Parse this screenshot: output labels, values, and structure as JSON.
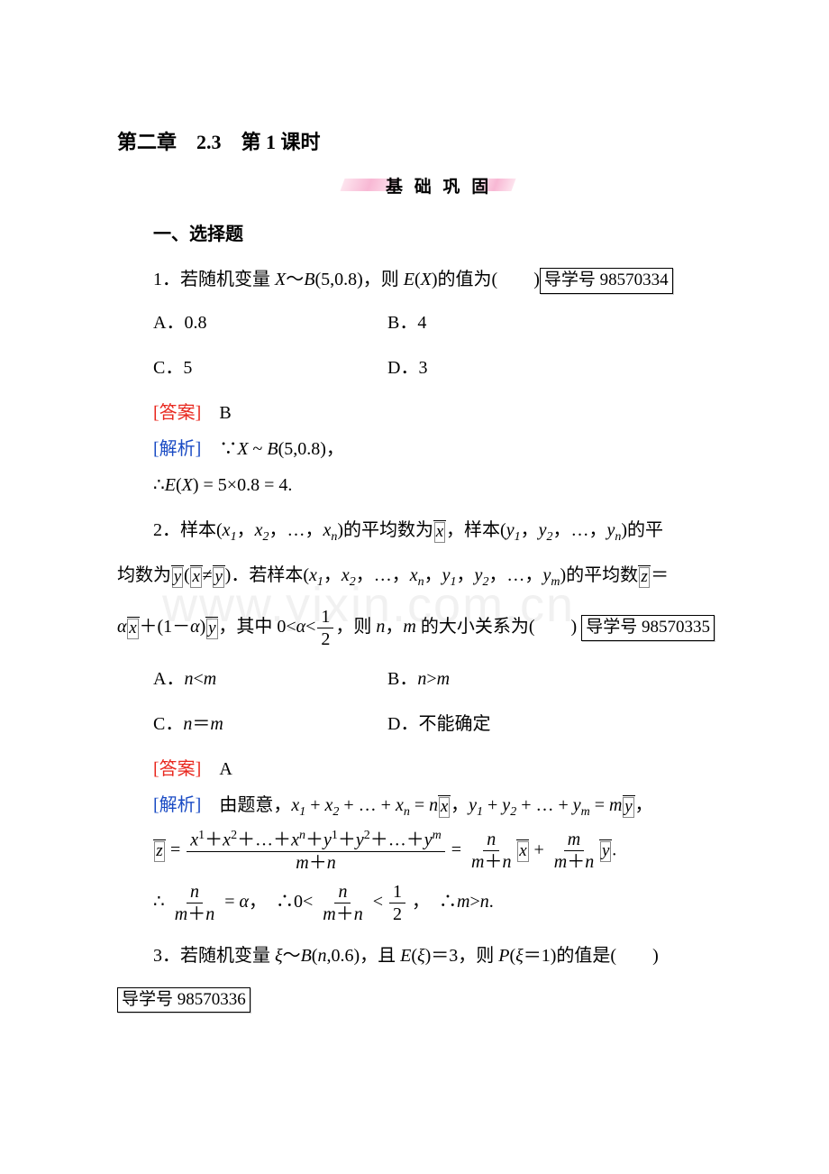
{
  "chapterTitle": "第二章　2.3　第 1 课时",
  "bannerText": "基 础 巩 固",
  "sectionTitle": "一、选择题",
  "watermark": "www.yixin.com.cn",
  "p1": {
    "text_a": "1．若随机变量 ",
    "text_b": "～",
    "text_c": "(5,0.8)，则 ",
    "text_d": "(",
    "text_e": ")的值为(　　)",
    "daoxue": "导学号 98570334",
    "optA": "A．0.8",
    "optB": "B．4",
    "optC": "C．5",
    "optD": "D．3",
    "ansLabel": "[答案]",
    "ansVal": "B",
    "explLabel": "[解析]",
    "expl1a": "∵",
    "expl1b": " ~ ",
    "expl1c": "(5,0.8)，",
    "expl2a": "∴",
    "expl2b": "(",
    "expl2c": ") = 5×0.8 = 4."
  },
  "p2": {
    "t1": "2．样本(",
    "t2": "，",
    "t3": "，…，",
    "t4": ")的平均数为",
    "t5": "，样本(",
    "t6": "，",
    "t7": "，…，",
    "t8": ")的平",
    "t9": "均数为",
    "t10": "(",
    "t11": "≠",
    "t12": ")．若样本(",
    "t13": "，",
    "t14": "，…，",
    "t15": "，",
    "t16": "，",
    "t17": "，…，",
    "t18": ")的平均数",
    "t19": "＝",
    "t20": "＋(1－",
    "t21": ")",
    "t22": "，其中 0<",
    "t23": "<",
    "frac1n": "1",
    "frac1d": "2",
    "t24": "，则 ",
    "t25": "，",
    "t26": " 的大小关系为(　　)",
    "daoxue": "导学号 98570335",
    "optA_a": "A．",
    "optA_b": "<",
    "optB_a": "B．",
    "optB_b": ">",
    "optC_a": "C．",
    "optC_b": "＝",
    "optD": "D．不能确定",
    "ansLabel": "[答案]",
    "ansVal": "A",
    "explLabel": "[解析]",
    "e1": "由题意，",
    "e2": " + ",
    "e3": " + … + ",
    "e4": " = ",
    "e5": "，",
    "e6": " + ",
    "e7": " + … + ",
    "e8": " = ",
    "e9": "，",
    "eq2a": " = ",
    "eq2b": " = ",
    "eq2c": " + ",
    "eq2d": ".",
    "longnum": "x¹＋x²＋…＋xⁿ＋y¹＋y²＋…＋yᵐ",
    "mpn": "m＋n",
    "eq3a": "∴",
    "eq3b": " = ",
    "eq3c": "，　∴0<",
    "eq3d": "<",
    "eq3e": "，　∴",
    "eq3f": ">",
    "eq3g": "."
  },
  "p3": {
    "t1": "3．若随机变量 ",
    "t2": "～",
    "t3": "(",
    "t4": ",0.6)，且 ",
    "t5": "(",
    "t6": ")＝3，则 ",
    "t7": "(",
    "t8": "＝1)的值是(　　)",
    "daoxue": "导学号 98570336"
  }
}
